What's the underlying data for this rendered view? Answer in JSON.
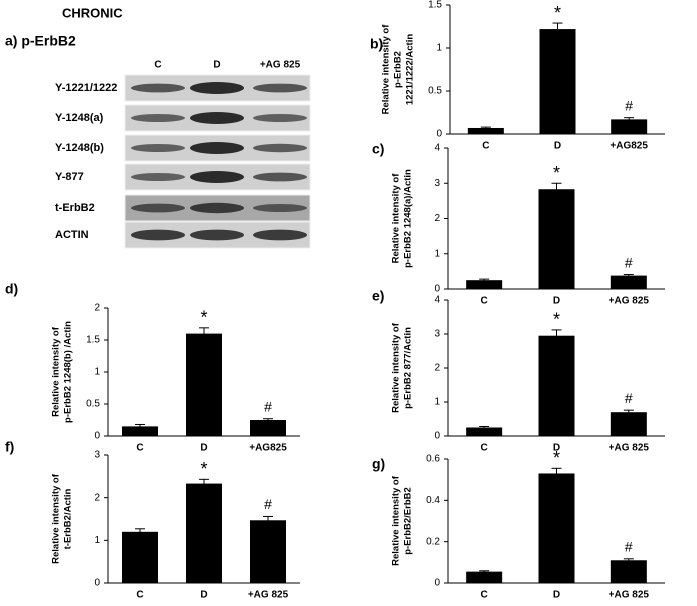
{
  "header": {
    "title": "CHRONIC"
  },
  "blot": {
    "title": "a) p-ErbB2",
    "lanes": [
      "C",
      "D",
      "+AG 825"
    ],
    "rows": [
      "Y-1221/1222",
      "Y-1248(a)",
      "Y-1248(b)",
      "Y-877",
      "t-ErbB2",
      "ACTIN"
    ]
  },
  "chart_data": [
    {
      "type": "bar",
      "panel": "b)",
      "ylabel": [
        "Relative intensity of",
        "p-ErbB2",
        "1221/1222/Actin"
      ],
      "categories": [
        "C",
        "D",
        "+AG825"
      ],
      "values": [
        0.07,
        1.22,
        0.17
      ],
      "errors": [
        0.01,
        0.07,
        0.02
      ],
      "annotations": [
        null,
        "*",
        "#"
      ],
      "color": "#000000",
      "ylim": [
        0,
        1.5
      ],
      "yticks": [
        0,
        0.5,
        1,
        1.5
      ]
    },
    {
      "type": "bar",
      "panel": "c)",
      "ylabel": [
        "Relative intensity of",
        "p-ErbB2 1248(a)/Actin"
      ],
      "categories": [
        "C",
        "D",
        "+AG 825"
      ],
      "values": [
        0.25,
        2.83,
        0.38
      ],
      "errors": [
        0.03,
        0.17,
        0.03
      ],
      "annotations": [
        null,
        "*",
        "#"
      ],
      "color": "#000000",
      "ylim": [
        0,
        4
      ],
      "yticks": [
        0,
        1,
        2,
        3,
        4
      ]
    },
    {
      "type": "bar",
      "panel": "d)",
      "ylabel": [
        "Relative intensity of",
        "p-ErbB2 1248(b) /Actin"
      ],
      "categories": [
        "C",
        "D",
        "+AG825"
      ],
      "values": [
        0.15,
        1.6,
        0.25
      ],
      "errors": [
        0.03,
        0.09,
        0.02
      ],
      "annotations": [
        null,
        "*",
        "#"
      ],
      "color": "#000000",
      "ylim": [
        0,
        2
      ],
      "yticks": [
        0,
        0.5,
        1,
        1.5,
        2
      ]
    },
    {
      "type": "bar",
      "panel": "e)",
      "ylabel": [
        "Relative intensity of",
        "p-ErbB2 877/Actin"
      ],
      "categories": [
        "C",
        "D",
        "+AG 825"
      ],
      "values": [
        0.25,
        2.95,
        0.7
      ],
      "errors": [
        0.03,
        0.17,
        0.06
      ],
      "annotations": [
        null,
        "*",
        "#"
      ],
      "color": "#000000",
      "ylim": [
        0,
        4
      ],
      "yticks": [
        0,
        1,
        2,
        3,
        4
      ]
    },
    {
      "type": "bar",
      "panel": "f)",
      "ylabel": [
        "Relative intensity of",
        "t-ErbB2/Actin"
      ],
      "categories": [
        "C",
        "D",
        "+AG 825"
      ],
      "values": [
        1.2,
        2.33,
        1.47
      ],
      "errors": [
        0.07,
        0.1,
        0.09
      ],
      "annotations": [
        null,
        "*",
        "#"
      ],
      "color": "#000000",
      "ylim": [
        0,
        3
      ],
      "yticks": [
        0,
        1,
        2,
        3
      ]
    },
    {
      "type": "bar",
      "panel": "g)",
      "ylabel": [
        "Relative intensity of",
        "p-ErbB2/ErbB2"
      ],
      "categories": [
        "C",
        "D",
        "+AG 825"
      ],
      "values": [
        0.055,
        0.53,
        0.11
      ],
      "errors": [
        0.004,
        0.025,
        0.007
      ],
      "annotations": [
        null,
        "*",
        "#"
      ],
      "color": "#000000",
      "ylim": [
        0,
        0.6
      ],
      "yticks": [
        0,
        0.2,
        0.4,
        0.6
      ]
    }
  ]
}
